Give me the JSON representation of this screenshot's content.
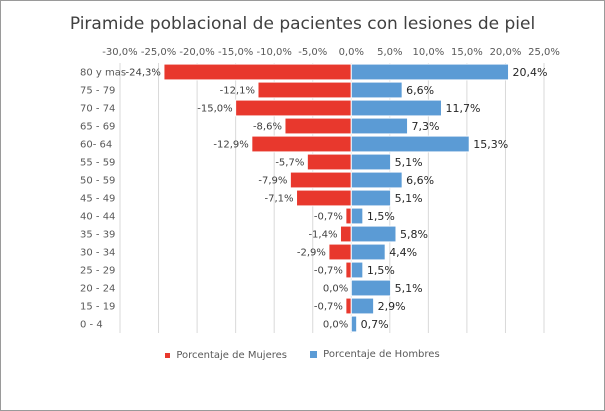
{
  "chart_data": {
    "type": "bar",
    "orientation": "horizontal",
    "title": "Piramide poblacional de pacientes con lesiones de piel",
    "categories": [
      "80 y mas",
      "75 - 79",
      "70 - 74",
      "65 - 69",
      "60- 64",
      "55 - 59",
      "50 - 59",
      "45 - 49",
      "40 - 44",
      "35 - 39",
      "30 - 34",
      "25 - 29",
      "20 - 24",
      "15 - 19",
      "0 - 4"
    ],
    "series": [
      {
        "name": "Porcentaje de Mujeres",
        "color": "#e8382d",
        "values": [
          -24.3,
          -12.1,
          -15.0,
          -8.6,
          -12.9,
          -5.7,
          -7.9,
          -7.1,
          -0.7,
          -1.4,
          -2.9,
          -0.7,
          0.0,
          -0.7,
          0.0
        ],
        "labels": [
          "-24,3%",
          "-12,1%",
          "-15,0%",
          "-8,6%",
          "-12,9%",
          "-5,7%",
          "-7,9%",
          "-7,1%",
          "-0,7%",
          "-1,4%",
          "-2,9%",
          "-0,7%",
          "0,0%",
          "-0,7%",
          "0,0%"
        ]
      },
      {
        "name": "Porcentaje de Hombres",
        "color": "#5b9bd5",
        "values": [
          20.4,
          6.6,
          11.7,
          7.3,
          15.3,
          5.1,
          6.6,
          5.1,
          1.5,
          5.8,
          4.4,
          1.5,
          5.1,
          2.9,
          0.7
        ],
        "labels": [
          "20,4%",
          "6,6%",
          "11,7%",
          "7,3%",
          "15,3%",
          "5,1%",
          "6,6%",
          "5,1%",
          "1,5%",
          "5,8%",
          "4,4%",
          "1,5%",
          "5,1%",
          "2,9%",
          "0,7%"
        ]
      }
    ],
    "xlim": [
      -30,
      25
    ],
    "xticks": [
      -30,
      -25,
      -20,
      -15,
      -10,
      -5,
      0,
      5,
      10,
      15,
      20,
      25
    ],
    "xtick_labels": [
      "-30,0%",
      "-25,0%",
      "-20,0%",
      "-15,0%",
      "-10,0%",
      "-5,0%",
      "0,0%",
      "5,0%",
      "10,0%",
      "15,0%",
      "20,0%",
      "25,0%"
    ],
    "grid": true,
    "legend_position": "bottom"
  }
}
